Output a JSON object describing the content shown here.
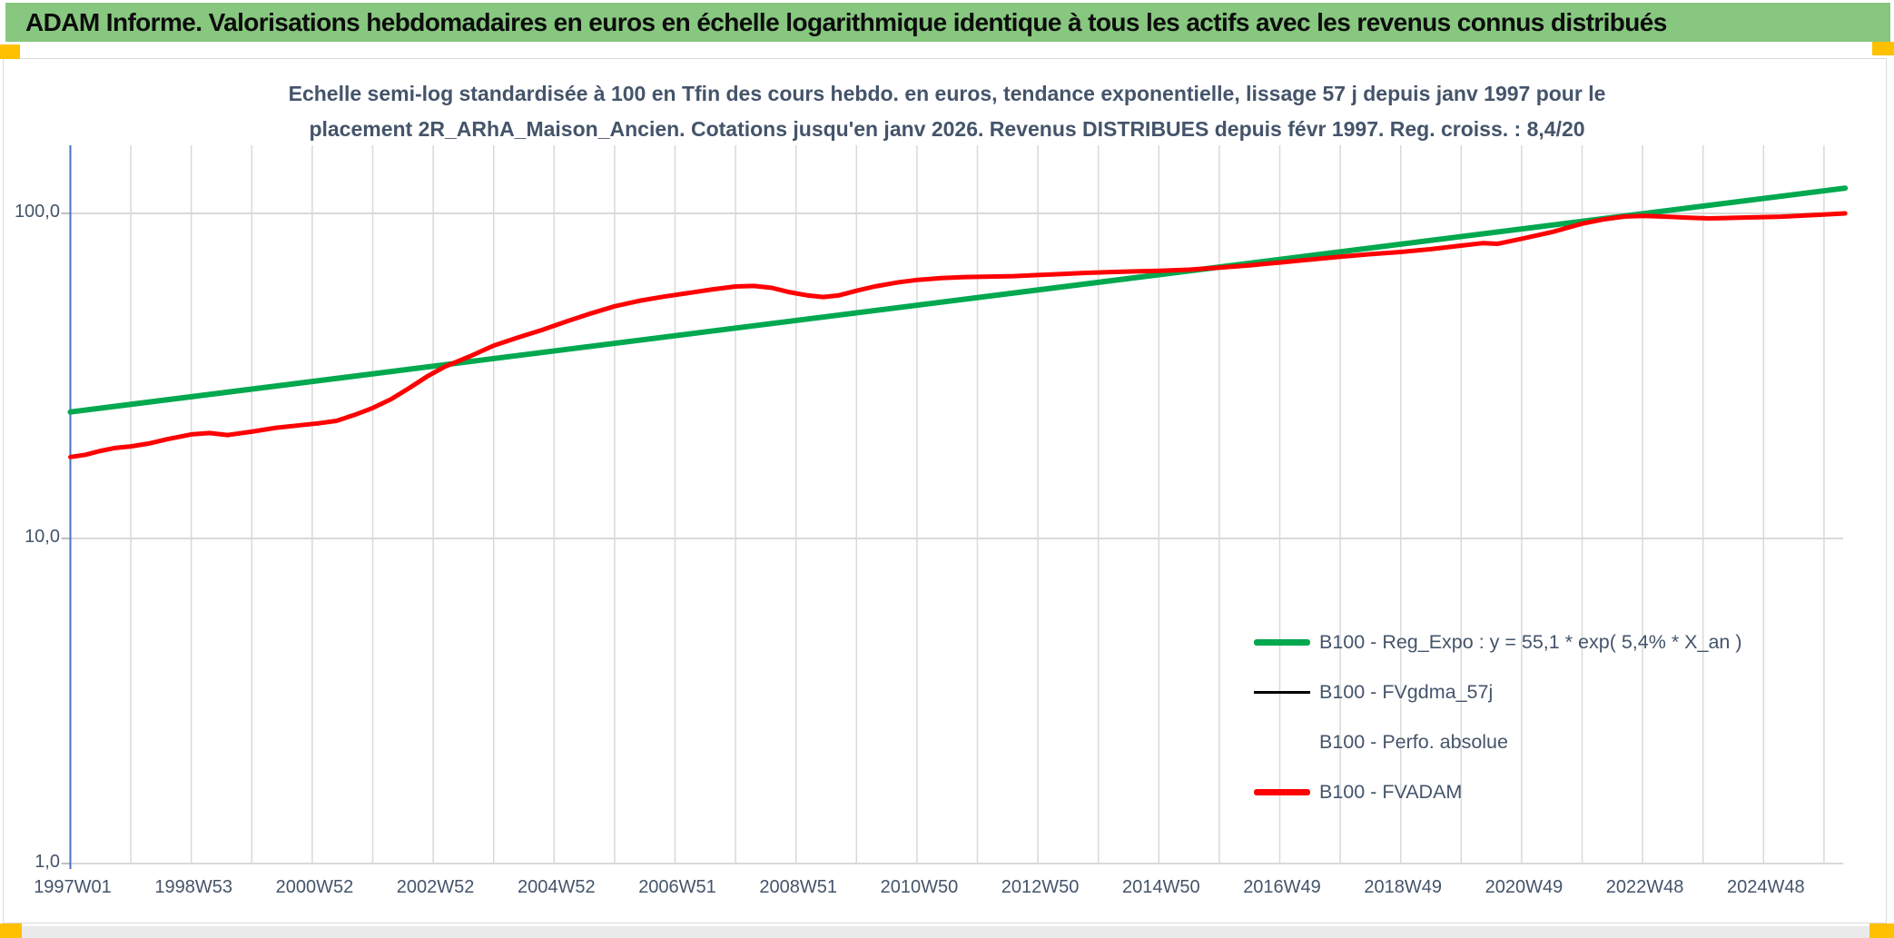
{
  "header": {
    "title": "ADAM Informe. Valorisations hebdomadaires en euros en échelle logarithmique identique à tous les actifs avec les revenus connus distribués",
    "bar_color": "#87C77F",
    "corner_square_color": "#FFC000"
  },
  "chart_data": {
    "type": "line",
    "title_lines": [
      "Echelle semi-log standardisée à 100 en Tfin des cours hebdo. en euros, tendance exponentielle, lissage 57 j depuis janv 1997 pour le",
      "placement 2R_ARhA_Maison_Ancien. Cotations jusqu'en janv 2026. Revenus DISTRIBUES depuis févr 1997. Reg. croiss. : 8,4/20"
    ],
    "y_axis": {
      "scale": "log",
      "tick_labels": [
        "100,0",
        "10,0",
        "1,0"
      ],
      "tick_values": [
        100,
        10,
        1
      ],
      "axis_line_color": "#4472C4"
    },
    "x_axis": {
      "start_year": 1997,
      "end_year": 2026.35,
      "label_interval_years": 2,
      "gridline_interval_years": 1,
      "tick_labels": [
        "1997W01",
        "1998W53",
        "2000W52",
        "2002W52",
        "2004W52",
        "2006W51",
        "2008W51",
        "2010W50",
        "2012W50",
        "2014W50",
        "2016W49",
        "2018W49",
        "2020W49",
        "2022W48",
        "2024W48"
      ]
    },
    "grid_color": "#D9D9D9",
    "legend": [
      {
        "label": "B100 - Reg_Expo : y = 55,1 * exp( 5,4% *  X_an )",
        "color": "#00A84F",
        "style": "thick"
      },
      {
        "label": "B100 - FVgdma_57j",
        "color": "#000000",
        "style": "thin"
      },
      {
        "label": "B100 - Perfo. absolue",
        "color": "#FF0000",
        "style": "dotted"
      },
      {
        "label": "B100 - FVADAM",
        "color": "#FF0000",
        "style": "thick"
      }
    ],
    "series": [
      {
        "name": "B100 - Reg_Expo",
        "color": "#00A84F",
        "width": 6,
        "style": "solid",
        "points": [
          [
            1997.0,
            24.5
          ],
          [
            2026.35,
            119.6
          ]
        ]
      },
      {
        "name": "B100 - FVgdma_57j",
        "color": "#000000",
        "width": 2,
        "style": "solid",
        "points_same_as": 3
      },
      {
        "name": "B100 - Perfo. absolue",
        "color": "#FF0000",
        "width": 2,
        "style": "dotted",
        "points_same_as": 3
      },
      {
        "name": "B100 - FVADAM",
        "color": "#FF0000",
        "width": 5,
        "style": "solid",
        "points": [
          [
            1997.0,
            17.8
          ],
          [
            1997.25,
            18.1
          ],
          [
            1997.5,
            18.6
          ],
          [
            1997.75,
            19.0
          ],
          [
            1998.0,
            19.2
          ],
          [
            1998.3,
            19.6
          ],
          [
            1998.6,
            20.2
          ],
          [
            1999.0,
            20.9
          ],
          [
            1999.3,
            21.1
          ],
          [
            1999.6,
            20.8
          ],
          [
            2000.0,
            21.3
          ],
          [
            2000.4,
            21.9
          ],
          [
            2000.8,
            22.3
          ],
          [
            2001.1,
            22.6
          ],
          [
            2001.4,
            23.0
          ],
          [
            2001.7,
            24.0
          ],
          [
            2002.0,
            25.2
          ],
          [
            2002.3,
            26.8
          ],
          [
            2002.6,
            29.0
          ],
          [
            2002.9,
            31.5
          ],
          [
            2003.2,
            33.8
          ],
          [
            2003.6,
            36.3
          ],
          [
            2004.0,
            39.2
          ],
          [
            2004.4,
            41.5
          ],
          [
            2004.8,
            43.8
          ],
          [
            2005.2,
            46.5
          ],
          [
            2005.6,
            49.2
          ],
          [
            2006.0,
            51.8
          ],
          [
            2006.4,
            53.8
          ],
          [
            2006.8,
            55.4
          ],
          [
            2007.2,
            56.8
          ],
          [
            2007.6,
            58.3
          ],
          [
            2008.0,
            59.6
          ],
          [
            2008.3,
            59.8
          ],
          [
            2008.6,
            59.0
          ],
          [
            2008.9,
            57.2
          ],
          [
            2009.2,
            55.9
          ],
          [
            2009.45,
            55.3
          ],
          [
            2009.7,
            55.9
          ],
          [
            2010.0,
            57.8
          ],
          [
            2010.3,
            59.6
          ],
          [
            2010.7,
            61.4
          ],
          [
            2011.0,
            62.4
          ],
          [
            2011.4,
            63.2
          ],
          [
            2011.8,
            63.7
          ],
          [
            2012.2,
            63.9
          ],
          [
            2012.6,
            64.1
          ],
          [
            2013.0,
            64.6
          ],
          [
            2013.4,
            65.1
          ],
          [
            2013.8,
            65.6
          ],
          [
            2014.2,
            66.0
          ],
          [
            2014.6,
            66.3
          ],
          [
            2015.0,
            66.6
          ],
          [
            2015.5,
            67.1
          ],
          [
            2016.0,
            68.1
          ],
          [
            2016.5,
            69.2
          ],
          [
            2017.0,
            70.6
          ],
          [
            2017.5,
            72.1
          ],
          [
            2018.0,
            73.6
          ],
          [
            2018.5,
            74.9
          ],
          [
            2019.0,
            76.1
          ],
          [
            2019.5,
            77.6
          ],
          [
            2020.0,
            79.6
          ],
          [
            2020.35,
            81.0
          ],
          [
            2020.6,
            80.6
          ],
          [
            2021.0,
            83.6
          ],
          [
            2021.5,
            87.6
          ],
          [
            2022.0,
            93.0
          ],
          [
            2022.35,
            95.8
          ],
          [
            2022.7,
            97.8
          ],
          [
            2023.0,
            98.2
          ],
          [
            2023.4,
            97.7
          ],
          [
            2023.8,
            96.9
          ],
          [
            2024.1,
            96.5
          ],
          [
            2024.5,
            96.9
          ],
          [
            2024.9,
            97.3
          ],
          [
            2025.3,
            97.7
          ],
          [
            2025.7,
            98.5
          ],
          [
            2026.0,
            99.2
          ],
          [
            2026.35,
            100.0
          ]
        ]
      }
    ]
  }
}
